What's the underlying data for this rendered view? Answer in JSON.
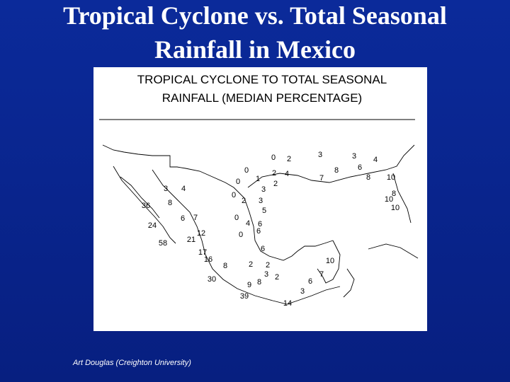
{
  "header": {
    "title": [
      "Tropical Cyclone vs. Total Seasonal",
      "Rainfall in Mexico"
    ]
  },
  "map": {
    "title": [
      "TROPICAL CYCLONE TO TOTAL SEASONAL",
      "RAINFALL (MEDIAN PERCENTAGE)"
    ],
    "labels": [
      "0",
      "2",
      "3",
      "3",
      "4",
      "0",
      "0",
      "1",
      "2",
      "4",
      "2",
      "7",
      "8",
      "6",
      "8",
      "10",
      "3",
      "4",
      "3",
      "0",
      "2",
      "3",
      "5",
      "36",
      "8",
      "10",
      "8",
      "10",
      "6",
      "7",
      "0",
      "4",
      "6",
      "6",
      "24",
      "12",
      "21",
      "0",
      "58",
      "6",
      "17",
      "16",
      "8",
      "2",
      "2",
      "10",
      "3",
      "2",
      "7",
      "6",
      "30",
      "9",
      "8",
      "3",
      "39",
      "14"
    ]
  },
  "footer": {
    "credit": "Art Douglas (Creighton University)"
  }
}
